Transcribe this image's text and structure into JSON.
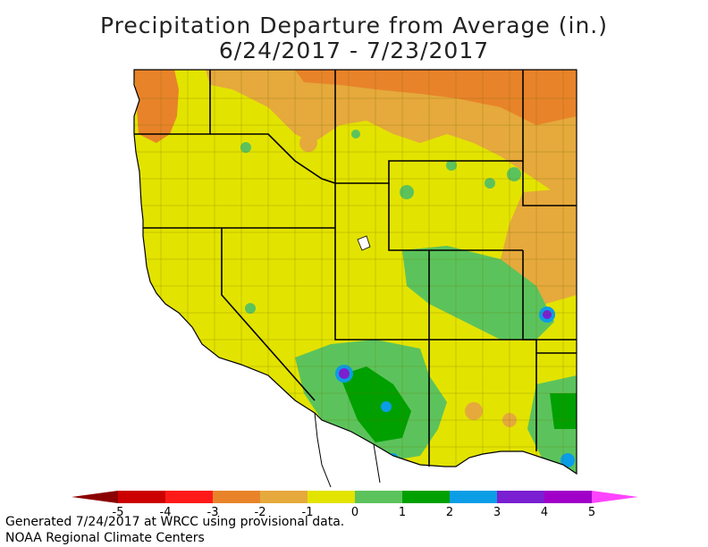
{
  "title": {
    "line1": "Precipitation Departure from Average (in.)",
    "line2": "6/24/2017 - 7/23/2017"
  },
  "legend": {
    "ticks": [
      "-5",
      "-4",
      "-3",
      "-2",
      "-1",
      "0",
      "1",
      "2",
      "3",
      "4",
      "5"
    ],
    "colors": [
      "#8b0000",
      "#cc0000",
      "#ff1a1a",
      "#e8832a",
      "#e6a93c",
      "#e3e300",
      "#5cc35c",
      "#00a000",
      "#0b9de6",
      "#7a1fd1",
      "#a000c8",
      "#ff44ff"
    ]
  },
  "map": {
    "region": "Western United States",
    "colors": {
      "dry_strong": "#e8832a",
      "dry": "#e6a93c",
      "normal": "#e3e300",
      "wet": "#5cc35c",
      "wetter": "#00a000",
      "very_wet": "#0b9de6",
      "extreme_wet": "#7a1fd1",
      "ocean": "#ffffff"
    }
  },
  "footer": {
    "line1": "Generated 7/24/2017 at WRCC using provisional data.",
    "line2": "NOAA Regional Climate Centers"
  }
}
